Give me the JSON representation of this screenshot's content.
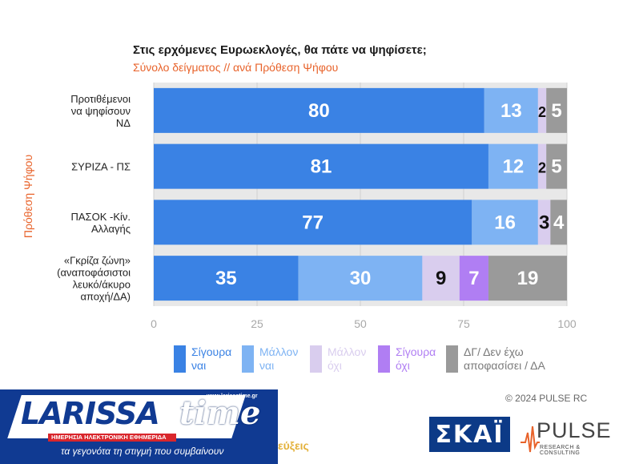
{
  "header": {
    "title": "Στις ερχόμενες Ευρωεκλογές, θα πάτε να ψηφίσετε;",
    "subtitle": "Σύνολο δείγματος // ανά Πρόθεση Ψήφου",
    "ylabel": "Πρόθεση Ψήφου"
  },
  "chart_data": {
    "type": "bar",
    "orientation": "horizontal",
    "stacked": true,
    "categories": [
      "Προτιθέμενοι\nνα ψηφίσουν\nΝΔ",
      "ΣΥΡΙΖΑ - ΠΣ",
      "ΠΑΣΟΚ -Κίν.\nΑλλαγής",
      "«Γκρίζα ζώνη»\n(αναποφάσιστοι\nλευκό/άκυρο\nαποχή/ΔΑ)"
    ],
    "series": [
      {
        "name": "Σίγουρα\nναι",
        "color": "#3a82e4",
        "values": [
          80,
          81,
          77,
          35
        ]
      },
      {
        "name": "Μάλλον\nναι",
        "color": "#7eb3f3",
        "values": [
          13,
          12,
          16,
          30
        ]
      },
      {
        "name": "Μάλλον\nόχι",
        "color": "#d9cdee",
        "values": [
          2,
          2,
          3,
          9
        ]
      },
      {
        "name": "Σίγουρα\nόχι",
        "color": "#b07ef3",
        "values": [
          0,
          0,
          0,
          7
        ]
      },
      {
        "name": "ΔΓ/ Δεν έχω\nαποφασίσει / ΔΑ",
        "color": "#9a9a9a",
        "values": [
          5,
          5,
          4,
          19
        ]
      }
    ],
    "labels": [
      [
        "80",
        "13",
        "2",
        "",
        "5"
      ],
      [
        "81",
        "12",
        "2",
        "",
        "5"
      ],
      [
        "77",
        "16",
        "3",
        "",
        "4"
      ],
      [
        "35",
        "30",
        "9",
        "7",
        "19"
      ]
    ],
    "xticks": [
      "0",
      "25",
      "50",
      "75",
      "100"
    ],
    "xlim": [
      0,
      100
    ],
    "legend": "bottom"
  },
  "footer": {
    "copyright": "© 2024 PULSE RC",
    "partial_text": "εύξεις",
    "skai_logo": "ΣΚΑΪ",
    "pulse_logo": "PULSE",
    "pulse_tagline": "RESEARCH & CONSULTING",
    "banner": {
      "logo_text": "LARISSA",
      "logo_time": "time",
      "url": "www.larissatime.gr",
      "red_strip": "ΗΜΕΡΗΣΙΑ ΗΛΕΚΤΡΟΝΙΚΗ ΕΦΗΜΕΡΙΔΑ",
      "slogan": "τα γεγονότα τη στιγμή που συμβαίνουν"
    }
  }
}
